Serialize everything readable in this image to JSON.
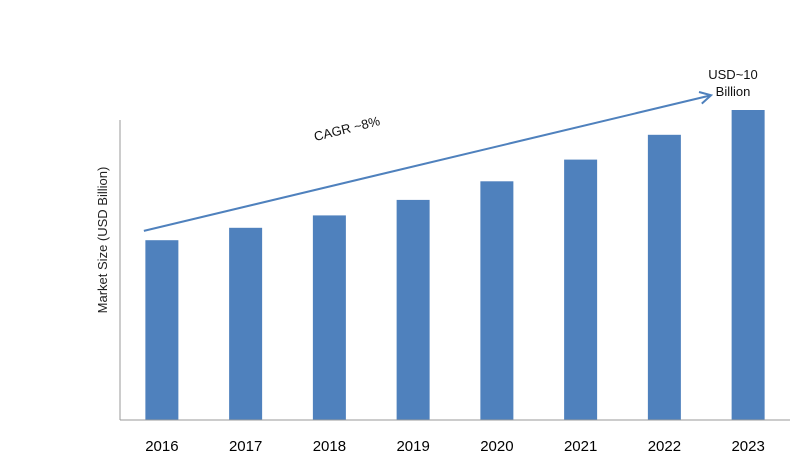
{
  "chart_data": {
    "type": "bar",
    "categories": [
      "2016",
      "2017",
      "2018",
      "2019",
      "2020",
      "2021",
      "2022",
      "2023"
    ],
    "values": [
      5.8,
      6.2,
      6.6,
      7.1,
      7.7,
      8.4,
      9.2,
      10.0
    ],
    "ylabel": "Market Size (USD Billion)",
    "xlabel": "",
    "ylim": [
      0,
      10
    ],
    "grid": false,
    "legend": "none",
    "bar_color": "#4f81bd",
    "annotations": {
      "cagr": "CAGR ~8%",
      "end_value_line1": "USD~10",
      "end_value_line2": "Billion"
    },
    "trend_arrow": {
      "from": {
        "category": "2016",
        "value": 6.1
      },
      "to": {
        "category": "2023",
        "value": 10.5
      },
      "color": "#4f81bd"
    }
  }
}
